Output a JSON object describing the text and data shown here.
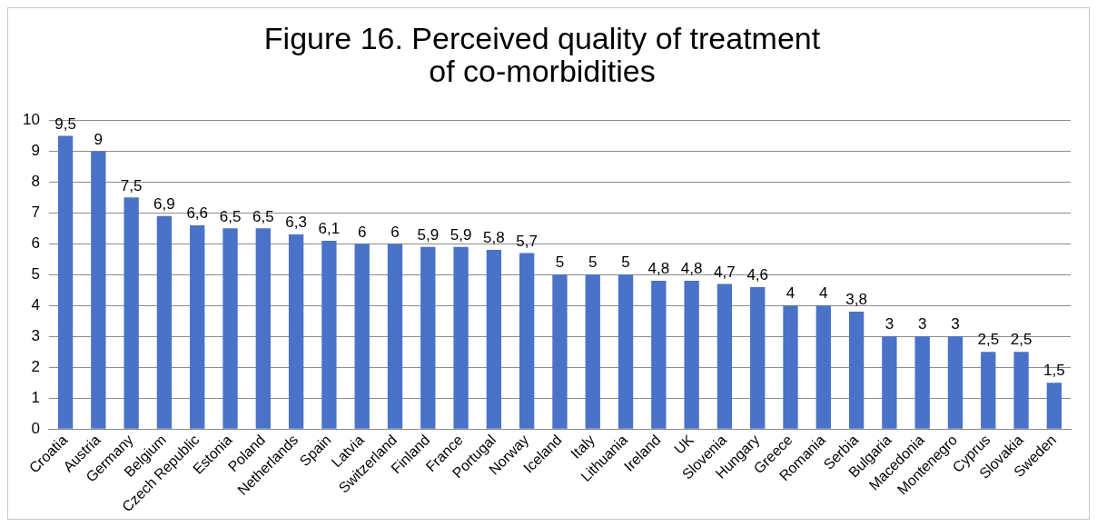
{
  "chart_data": {
    "type": "bar",
    "title": "Figure 16. Perceived quality of treatment\nof co-morbidities",
    "categories": [
      "Croatia",
      "Austria",
      "Germany",
      "Belgium",
      "Czech Republic",
      "Estonia",
      "Poland",
      "Netherlands",
      "Spain",
      "Latvia",
      "Switzerland",
      "Finland",
      "France",
      "Portugal",
      "Norway",
      "Iceland",
      "Italy",
      "Lithuania",
      "Ireland",
      "UK",
      "Slovenia",
      "Hungary",
      "Greece",
      "Romania",
      "Serbia",
      "Bulgaria",
      "Macedonia",
      "Montenegro",
      "Cyprus",
      "Slovakia",
      "Sweden"
    ],
    "values": [
      9.5,
      9,
      7.5,
      6.9,
      6.6,
      6.5,
      6.5,
      6.3,
      6.1,
      6,
      6,
      5.9,
      5.9,
      5.8,
      5.7,
      5,
      5,
      5,
      4.8,
      4.8,
      4.7,
      4.6,
      4,
      4,
      3.8,
      3,
      3,
      3,
      2.5,
      2.5,
      1.5
    ],
    "value_labels": [
      "9,5",
      "9",
      "7,5",
      "6,9",
      "6,6",
      "6,5",
      "6,5",
      "6,3",
      "6,1",
      "6",
      "6",
      "5,9",
      "5,9",
      "5,8",
      "5,7",
      "5",
      "5",
      "5",
      "4,8",
      "4,8",
      "4,7",
      "4,6",
      "4",
      "4",
      "3,8",
      "3",
      "3",
      "3",
      "2,5",
      "2,5",
      "1,5"
    ],
    "color": "#4a72c8",
    "ylim": [
      0,
      10
    ],
    "yticks": [
      0,
      1,
      2,
      3,
      4,
      5,
      6,
      7,
      8,
      9,
      10
    ],
    "grid": "y",
    "legend": false
  }
}
